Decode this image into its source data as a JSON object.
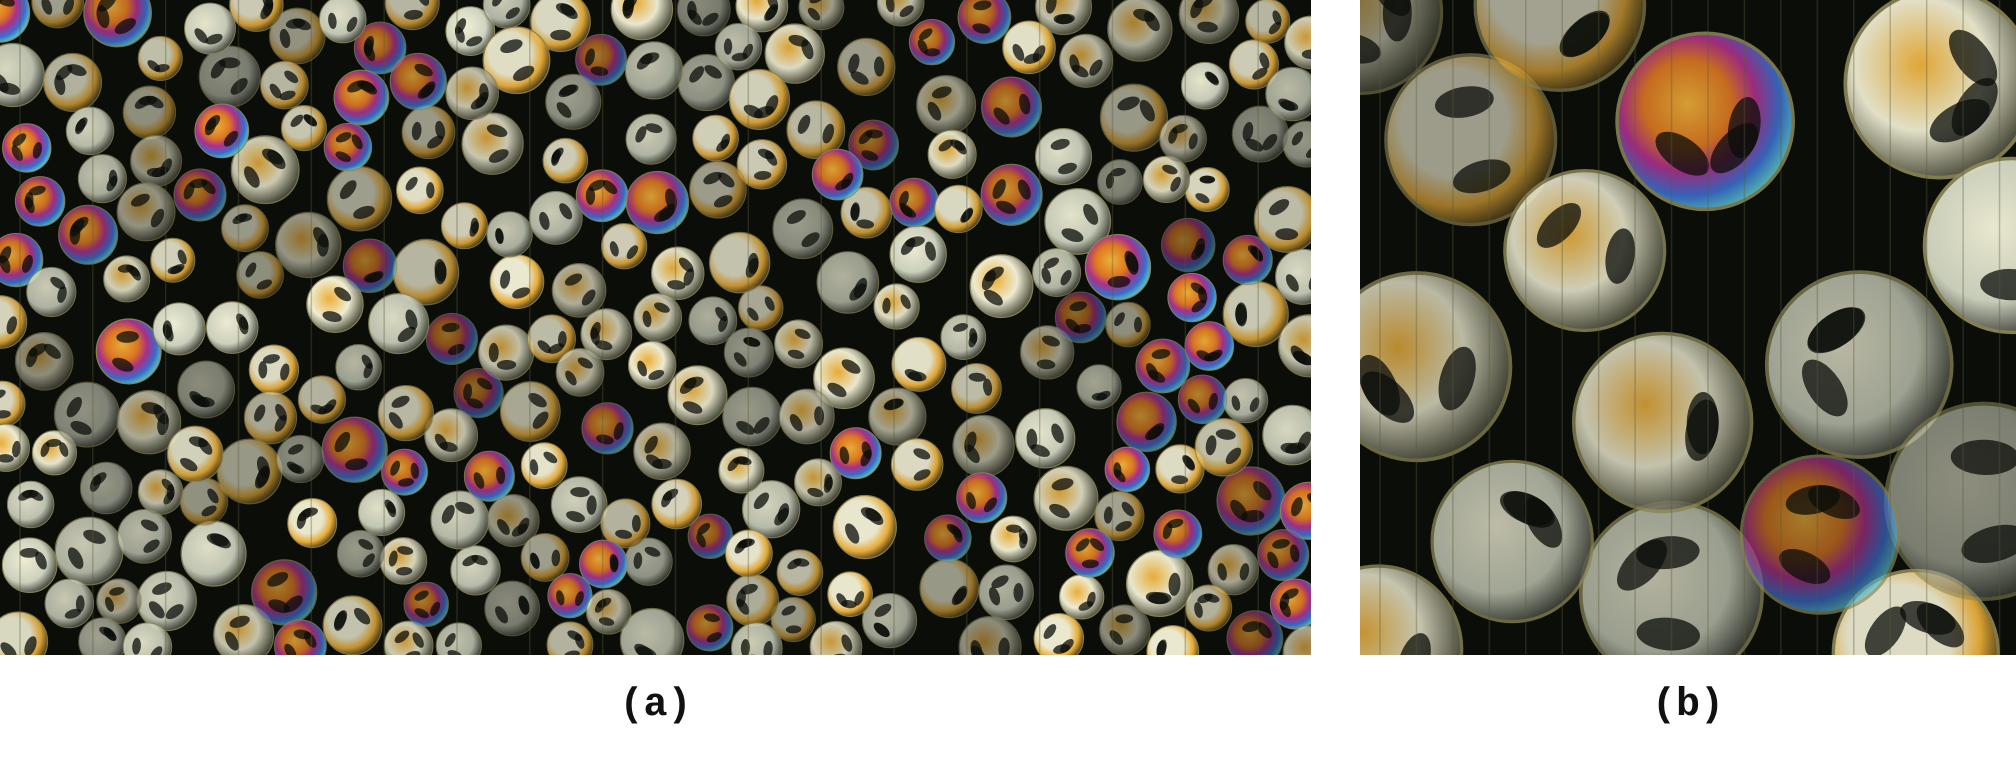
{
  "panels": [
    {
      "label": "(a)",
      "image": "photoelastic-disks-overview"
    },
    {
      "label": "(b)",
      "image": "photoelastic-disks-closeup"
    }
  ],
  "colors": {
    "background": "#0b0d09",
    "fringe_light": "#f2f0d6",
    "fringe_yellow": "#f0b23a",
    "fringe_orange": "#e07a22",
    "fringe_magenta": "#b0308c",
    "fringe_blue": "#3a6fd0",
    "fringe_cyan": "#58c4c8",
    "disk_rim": "#8a8555"
  }
}
